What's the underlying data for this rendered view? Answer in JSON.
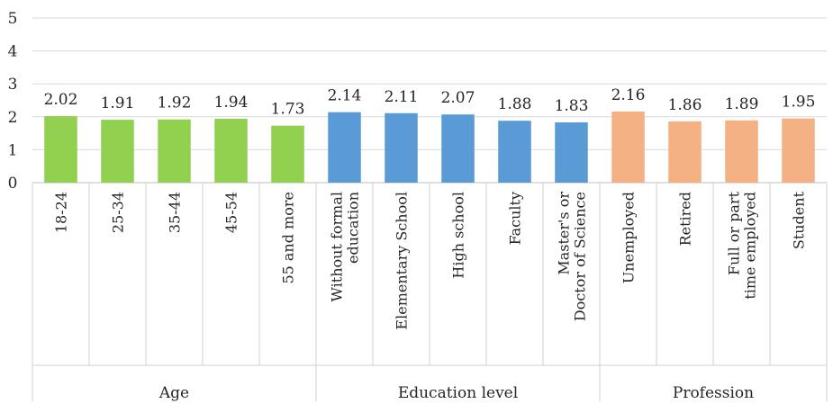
{
  "chart_data": {
    "type": "bar",
    "title": "",
    "xlabel": "",
    "ylabel": "",
    "ylim": [
      0,
      5
    ],
    "yticks": [
      0,
      1,
      2,
      3,
      4,
      5
    ],
    "grid": true,
    "legend": "none",
    "groups": [
      {
        "name": "Age",
        "color": "#92d050",
        "categories": [
          "18-24",
          "25-34",
          "35-44",
          "45-54",
          "55 and more"
        ],
        "values": [
          2.02,
          1.91,
          1.92,
          1.94,
          1.73
        ]
      },
      {
        "name": "Education level",
        "color": "#5b9bd5",
        "categories": [
          "Without formal education",
          "Elementary School",
          "High school",
          "Faculty",
          "Master's or Doctor of Science"
        ],
        "values": [
          2.14,
          2.11,
          2.07,
          1.88,
          1.83
        ]
      },
      {
        "name": "Profession",
        "color": "#f4b183",
        "categories": [
          "Unemployed",
          "Retired",
          "Full or part time employed",
          "Student"
        ],
        "values": [
          2.16,
          1.86,
          1.89,
          1.95
        ]
      }
    ]
  }
}
